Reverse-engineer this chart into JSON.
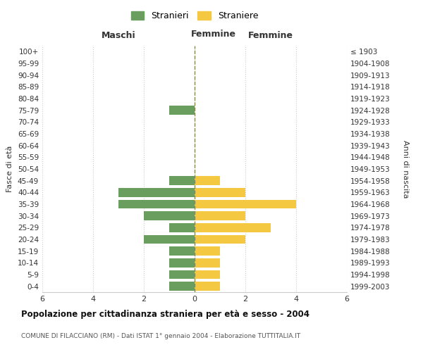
{
  "age_groups": [
    "0-4",
    "5-9",
    "10-14",
    "15-19",
    "20-24",
    "25-29",
    "30-34",
    "35-39",
    "40-44",
    "45-49",
    "50-54",
    "55-59",
    "60-64",
    "65-69",
    "70-74",
    "75-79",
    "80-84",
    "85-89",
    "90-94",
    "95-99",
    "100+"
  ],
  "birth_years": [
    "1999-2003",
    "1994-1998",
    "1989-1993",
    "1984-1988",
    "1979-1983",
    "1974-1978",
    "1969-1973",
    "1964-1968",
    "1959-1963",
    "1954-1958",
    "1949-1953",
    "1944-1948",
    "1939-1943",
    "1934-1938",
    "1929-1933",
    "1924-1928",
    "1919-1923",
    "1914-1918",
    "1909-1913",
    "1904-1908",
    "≤ 1903"
  ],
  "maschi": [
    1,
    1,
    1,
    1,
    2,
    1,
    2,
    3,
    3,
    1,
    0,
    0,
    0,
    0,
    0,
    1,
    0,
    0,
    0,
    0,
    0
  ],
  "femmine": [
    1,
    1,
    1,
    1,
    2,
    3,
    2,
    4,
    2,
    1,
    0,
    0,
    0,
    0,
    0,
    0,
    0,
    0,
    0,
    0,
    0
  ],
  "color_maschi": "#6a9e5f",
  "color_femmine": "#f5c842",
  "title": "Popolazione per cittadinanza straniera per età e sesso - 2004",
  "subtitle": "COMUNE DI FILACCIANO (RM) - Dati ISTAT 1° gennaio 2004 - Elaborazione TUTTITALIA.IT",
  "legend_maschi": "Stranieri",
  "legend_femmine": "Straniere",
  "xlabel_left": "Maschi",
  "xlabel_right": "Femmine",
  "ylabel_left": "Fasce di età",
  "ylabel_right": "Anni di nascita",
  "xlim": 6,
  "background_color": "#ffffff",
  "grid_color": "#cccccc"
}
